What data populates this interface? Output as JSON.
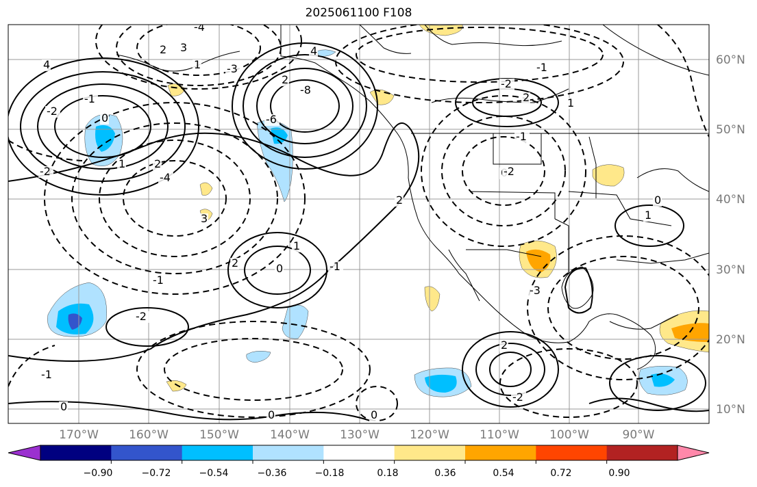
{
  "title": "2025061100 F108",
  "axes": {
    "lat_labels": [
      "60°N",
      "50°N",
      "40°N",
      "30°N",
      "20°N",
      "10°N"
    ],
    "lon_labels": [
      "170°W",
      "160°W",
      "150°W",
      "140°W",
      "130°W",
      "120°W",
      "110°W",
      "100°W",
      "90°W"
    ]
  },
  "colorbar": {
    "tick_labels": [
      "−0.90",
      "−0.72",
      "−0.54",
      "−0.36",
      "−0.18",
      "0.18",
      "0.36",
      "0.54",
      "0.72",
      "0.90"
    ],
    "colors": [
      "#9b30d0",
      "#000080",
      "#3355cc",
      "#00bfff",
      "#b0e2ff",
      "#ffffff",
      "#ffe88a",
      "#ffa500",
      "#ff4500",
      "#b22222",
      "#ff88aa"
    ]
  },
  "contour_labels": [
    "4",
    "2",
    "3",
    "1",
    "-4",
    "-3",
    "-2",
    "-1",
    "0",
    "-6",
    "-8",
    "2",
    "4",
    "-2",
    "1",
    "2",
    "0",
    "1",
    "-1",
    "2",
    "-1",
    "-2",
    "0",
    "-1",
    "3",
    "2",
    "-2",
    "-3",
    "-4",
    "-1",
    "0",
    "-2",
    "2",
    "1",
    "0",
    "2",
    "-1",
    "0",
    "0",
    "-2",
    "1"
  ],
  "grid": true
}
